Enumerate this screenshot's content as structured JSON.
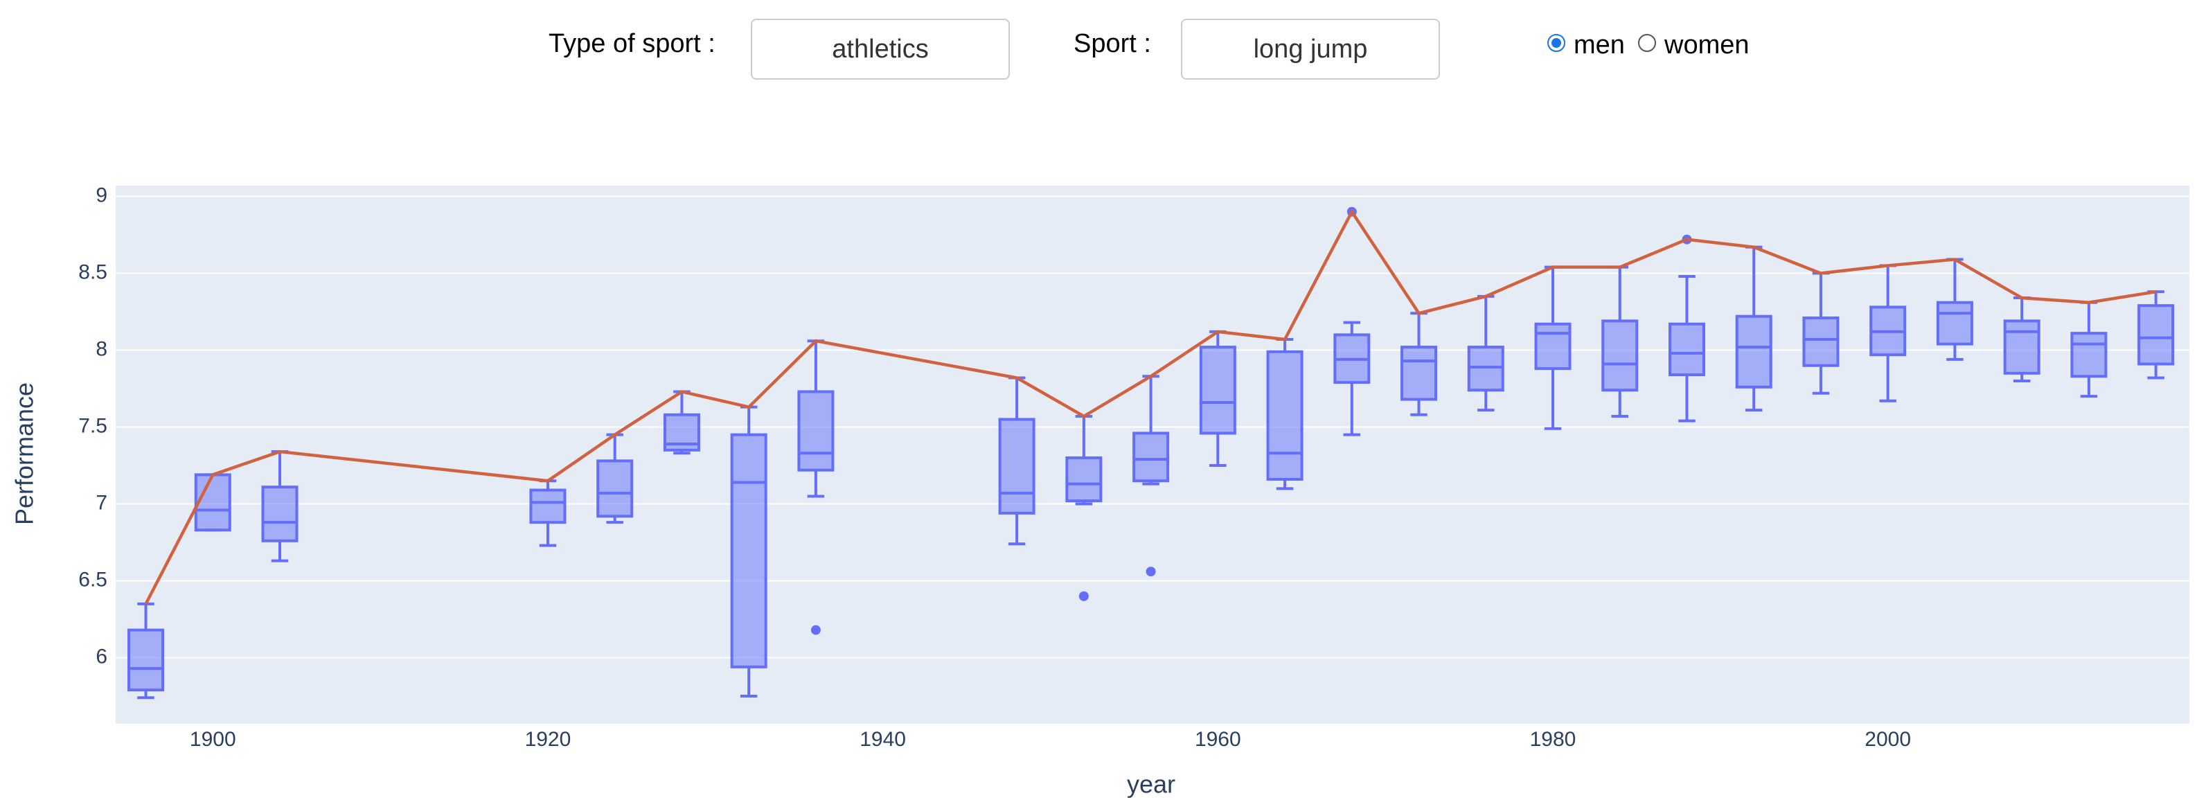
{
  "controls": {
    "sport_type_label": "Type of sport :",
    "sport_type": "athletics",
    "sport_label": "Sport :",
    "sport": "long jump",
    "genders": [
      "men",
      "women"
    ],
    "selected": "men"
  },
  "chart_data": {
    "type": "box",
    "xlabel": "year",
    "ylabel": "Performance",
    "x": [
      1896,
      1900,
      1904,
      1920,
      1924,
      1928,
      1932,
      1936,
      1948,
      1952,
      1956,
      1960,
      1964,
      1968,
      1972,
      1976,
      1980,
      1984,
      1988,
      1992,
      1996,
      2000,
      2004,
      2008,
      2012,
      2016
    ],
    "xlim": [
      1894.2,
      2018.0
    ],
    "xticks": [
      1900,
      1920,
      1940,
      1960,
      1980,
      2000
    ],
    "ylim": [
      5.57,
      9.07
    ],
    "yticks": [
      6,
      6.5,
      7,
      7.5,
      8,
      8.5,
      9
    ],
    "grid": true,
    "box": {
      "color": "#636efa",
      "min": [
        5.74,
        6.83,
        6.63,
        6.73,
        6.88,
        7.33,
        5.75,
        7.05,
        6.74,
        7.0,
        7.13,
        7.25,
        7.1,
        7.45,
        7.58,
        7.61,
        7.49,
        7.57,
        7.54,
        7.61,
        7.72,
        7.67,
        7.94,
        7.8,
        7.7,
        7.82
      ],
      "q1": [
        5.79,
        6.83,
        6.76,
        6.88,
        6.92,
        7.35,
        5.94,
        7.22,
        6.94,
        7.02,
        7.15,
        7.46,
        7.16,
        7.79,
        7.68,
        7.74,
        7.88,
        7.74,
        7.84,
        7.76,
        7.9,
        7.97,
        8.04,
        7.85,
        7.83,
        7.91
      ],
      "median": [
        5.93,
        6.96,
        6.88,
        7.01,
        7.07,
        7.39,
        7.14,
        7.33,
        7.07,
        7.13,
        7.29,
        7.66,
        7.33,
        7.94,
        7.93,
        7.89,
        8.11,
        7.91,
        7.98,
        8.02,
        8.07,
        8.12,
        8.24,
        8.12,
        8.04,
        8.08
      ],
      "q3": [
        6.18,
        7.19,
        7.11,
        7.09,
        7.28,
        7.58,
        7.45,
        7.73,
        7.55,
        7.3,
        7.46,
        8.02,
        7.99,
        8.1,
        8.02,
        8.02,
        8.17,
        8.19,
        8.17,
        8.22,
        8.21,
        8.28,
        8.31,
        8.19,
        8.11,
        8.29
      ],
      "max": [
        6.35,
        7.19,
        7.34,
        7.15,
        7.45,
        7.73,
        7.63,
        8.06,
        7.82,
        7.57,
        7.83,
        8.12,
        8.07,
        8.18,
        8.24,
        8.35,
        8.54,
        8.54,
        8.48,
        8.67,
        8.5,
        8.55,
        8.59,
        8.34,
        8.31,
        8.38
      ],
      "outliers": [
        {
          "x": 1936,
          "value": 6.18
        },
        {
          "x": 1952,
          "value": 6.4
        },
        {
          "x": 1956,
          "value": 6.56
        },
        {
          "x": 1968,
          "value": 8.9
        },
        {
          "x": 1988,
          "value": 8.72
        }
      ]
    },
    "line": {
      "color": "#d2623f",
      "values": [
        6.35,
        7.19,
        7.34,
        7.15,
        7.45,
        7.73,
        7.63,
        8.06,
        7.82,
        7.57,
        7.83,
        8.12,
        8.07,
        8.9,
        8.24,
        8.35,
        8.54,
        8.54,
        8.72,
        8.67,
        8.5,
        8.55,
        8.59,
        8.34,
        8.31,
        8.38
      ]
    }
  }
}
